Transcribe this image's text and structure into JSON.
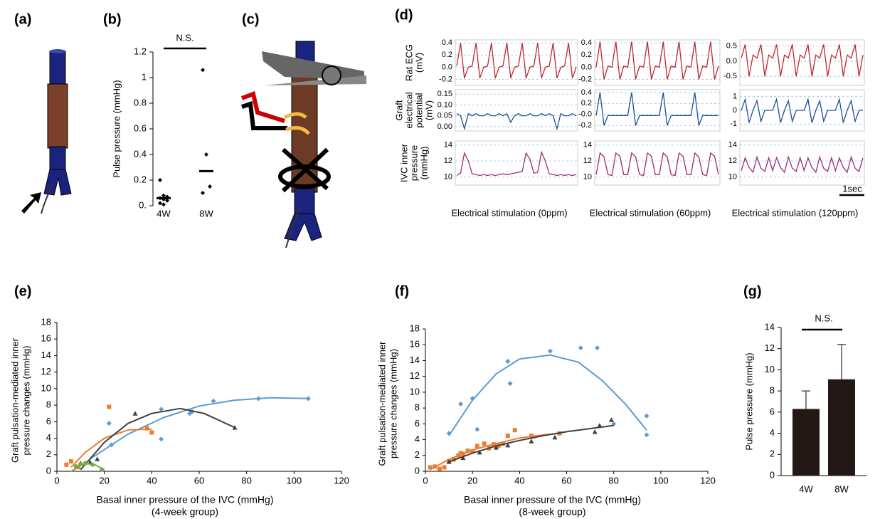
{
  "panel_labels": [
    "(a)",
    "(b)",
    "(c)",
    "(d)",
    "(e)",
    "(f)",
    "(g)"
  ],
  "chart_data": [
    {
      "type": "strip",
      "ylabel": "Pulse pressure (mmHg)",
      "categories": [
        "4W",
        "8W"
      ],
      "points": [
        [
          0.2,
          0.08,
          0.07,
          0.06,
          0.05,
          0.04,
          0.02,
          0.01
        ],
        [
          1.06,
          0.4,
          0.15,
          0.1
        ]
      ],
      "means": [
        0.06,
        0.27
      ],
      "annotation": "N.S.",
      "color": "#000000",
      "ylim": [
        0,
        1.2
      ],
      "yticks": [
        {
          "value": 0,
          "label": "0."
        },
        0.2,
        0.4,
        0.6,
        0.8,
        1,
        1.2
      ]
    },
    {
      "type": "traces",
      "row_labels": [
        [
          "Rat ECG",
          "(mV)"
        ],
        [
          "Graft",
          "electrical",
          "potential",
          "(mV)"
        ],
        [
          "IVC inner",
          "pressure",
          "(mmHg)"
        ]
      ],
      "row_colors": [
        "#c0272d",
        "#1f4e96",
        "#a0287a"
      ],
      "scale_bar_label": "1sec",
      "columns": [
        {
          "caption": "Electrical stimulation (0ppm)",
          "rows": [
            {
              "ylim": [
                -0.3,
                0.45
              ],
              "yticks": [
                0.4,
                0.2,
                {
                  "value": 0,
                  "label": "0.0"
                },
                -0.2
              ],
              "values": [
                0.02,
                0.4,
                -0.18,
                0.0,
                0.02,
                0.4,
                -0.18,
                0.0,
                0.02,
                0.4,
                -0.18,
                0.0,
                0.02,
                0.4,
                -0.18,
                0.0,
                0.02,
                0.4,
                -0.18,
                0.0,
                0.02,
                0.4,
                -0.18,
                0.0,
                0.02,
                0.4,
                -0.18,
                0.0,
                0.02,
                0.4,
                -0.18,
                0.0
              ]
            },
            {
              "ylim": [
                -0.02,
                0.17
              ],
              "yticks": [
                0.15,
                {
                  "value": 0.1,
                  "label": "0.10"
                },
                0.05,
                {
                  "value": 0,
                  "label": "0.00"
                }
              ],
              "values": [
                0.06,
                0.05,
                -0.01,
                0.06,
                0.05,
                0.06,
                0.05,
                0.05,
                0.06,
                0.05,
                0.05,
                0.06,
                0.05,
                0.06,
                0.02,
                0.05,
                0.06,
                0.05,
                0.05,
                0.06,
                0.05,
                0.05,
                0.06,
                0.05,
                0.06,
                0.05,
                -0.01,
                0.06,
                0.05,
                0.05,
                0.06,
                0.05
              ]
            },
            {
              "ylim": [
                9,
                14.5
              ],
              "yticks": [
                14,
                12,
                10
              ],
              "values": [
                10.2,
                10.5,
                13,
                12,
                10.4,
                10.3,
                10.2,
                10.3,
                10.2,
                10.3,
                10.2,
                10.3,
                10.4,
                10.3,
                10.4,
                10.5,
                10.6,
                10.7,
                13,
                12.2,
                10.5,
                10.6,
                13.1,
                12,
                10.4,
                10.3,
                10.2,
                10.3,
                10.2,
                10.3,
                10.2,
                10.3
              ]
            }
          ]
        },
        {
          "caption": "Electrical stimulation (60ppm)",
          "rows": [
            {
              "ylim": [
                -0.3,
                0.45
              ],
              "yticks": [
                0.4,
                0.2,
                {
                  "value": 0,
                  "label": "0.0"
                },
                -0.2
              ],
              "values": [
                0.0,
                0.42,
                -0.2,
                0.02,
                0.0,
                0.42,
                -0.2,
                0.02,
                0.0,
                0.42,
                -0.2,
                0.02,
                0.0,
                0.42,
                -0.2,
                0.02,
                0.0,
                0.42,
                -0.2,
                0.02,
                0.0,
                0.42,
                -0.2,
                0.02,
                0.0,
                0.42,
                -0.2,
                0.02,
                0.0,
                0.42,
                -0.2,
                0.02
              ]
            },
            {
              "ylim": [
                -0.3,
                0.45
              ],
              "yticks": [
                0.4,
                0.2,
                {
                  "value": 0,
                  "label": "-0.0"
                },
                -0.2
              ],
              "values": [
                -0.02,
                0.4,
                -0.2,
                -0.02,
                -0.02,
                -0.02,
                -0.02,
                -0.02,
                -0.02,
                0.4,
                -0.2,
                -0.02,
                -0.02,
                -0.02,
                -0.02,
                -0.02,
                -0.02,
                0.4,
                -0.2,
                -0.02,
                -0.02,
                -0.02,
                -0.02,
                -0.02,
                -0.02,
                0.4,
                -0.2,
                -0.02,
                -0.02,
                -0.02,
                -0.02,
                -0.02
              ]
            },
            {
              "ylim": [
                9,
                14.5
              ],
              "yticks": [
                14,
                12,
                10
              ],
              "values": [
                10.3,
                13,
                12.5,
                10.3,
                10.2,
                13,
                12.6,
                10.3,
                10.3,
                13,
                12.5,
                10.3,
                10.2,
                13,
                12.6,
                10.3,
                10.3,
                13,
                12.5,
                10.3,
                10.2,
                13,
                12.6,
                10.3,
                10.3,
                13,
                12.5,
                10.3,
                10.2,
                13,
                12.6,
                10.3
              ]
            }
          ]
        },
        {
          "caption": "Electrical stimulation (120ppm)",
          "rows": [
            {
              "ylim": [
                -0.8,
                0.7
              ],
              "yticks": [
                0.5,
                {
                  "value": 0,
                  "label": "0.0"
                },
                -0.5
              ],
              "values": [
                0.1,
                0.55,
                -0.5,
                0.2,
                0.1,
                0.55,
                -0.5,
                0.2,
                0.1,
                0.55,
                -0.5,
                0.2,
                0.1,
                0.55,
                -0.5,
                0.2,
                0.1,
                0.55,
                -0.5,
                0.2,
                0.1,
                0.55,
                -0.5,
                0.2,
                0.1,
                0.55,
                -0.5,
                0.2,
                0.1,
                0.55,
                -0.5,
                0.2
              ]
            },
            {
              "ylim": [
                -1.5,
                1.5
              ],
              "yticks": [
                1,
                0,
                -1
              ],
              "values": [
                0,
                0.8,
                -0.9,
                0,
                0.7,
                -0.8,
                0,
                0,
                0,
                0.8,
                -0.9,
                0,
                0.7,
                -0.8,
                0,
                0,
                0,
                0.8,
                -0.9,
                0,
                0.7,
                -0.8,
                0,
                0,
                0,
                0.8,
                -0.9,
                0,
                0.7,
                -0.8,
                0,
                0
              ]
            },
            {
              "ylim": [
                9,
                14.5
              ],
              "yticks": [
                14,
                12,
                10
              ],
              "values": [
                10.8,
                12.4,
                11.2,
                10.6,
                12.5,
                11.1,
                10.7,
                12.4,
                10.8,
                12.4,
                11.2,
                10.6,
                12.5,
                11.1,
                10.7,
                12.4,
                10.8,
                12.4,
                11.2,
                10.6,
                12.5,
                11.1,
                10.7,
                12.4,
                10.8,
                12.4,
                11.2,
                10.6,
                12.5,
                11.1,
                10.7,
                12.4
              ]
            }
          ]
        }
      ]
    },
    {
      "type": "scatter",
      "xlabel": "Basal inner pressure of the IVC (mmHg)",
      "subtitle": "(4-week group)",
      "ylabel": [
        "Graft pulsation-mediated inner",
        "pressure changes (mmHg)"
      ],
      "xlim": [
        0,
        120
      ],
      "xticks": [
        0,
        20,
        40,
        60,
        80,
        100,
        120
      ],
      "ylim": [
        0,
        18
      ],
      "yticks": [
        0,
        2,
        4,
        6,
        8,
        10,
        12,
        14,
        16,
        18
      ],
      "series": [
        {
          "color": "#5b9bd5",
          "marker": "diamond",
          "x": [
            22,
            23,
            44,
            44,
            56,
            57,
            66,
            85,
            106
          ],
          "values": [
            5.8,
            3.2,
            3.9,
            7.5,
            7,
            7.2,
            8.5,
            8.8,
            8.8
          ],
          "fit_x": [
            14,
            30,
            45,
            60,
            75,
            90,
            106
          ],
          "fit_values": [
            1.5,
            4.5,
            6.5,
            7.9,
            8.6,
            8.9,
            8.8
          ]
        },
        {
          "color": "#ed7d31",
          "marker": "square",
          "x": [
            4,
            6,
            9,
            22,
            38,
            40
          ],
          "values": [
            0.8,
            1.2,
            0.5,
            7.8,
            5.2,
            4.7
          ],
          "fit_x": [
            6,
            12,
            20,
            30,
            40
          ],
          "fit_values": [
            0.5,
            2.3,
            4,
            5,
            5.1
          ]
        },
        {
          "color": "#404040",
          "marker": "triangle",
          "x": [
            10,
            14,
            17,
            33,
            75
          ],
          "values": [
            1,
            1.1,
            1.5,
            7,
            5.3
          ],
          "fit_x": [
            10,
            20,
            30,
            40,
            52,
            62,
            75
          ],
          "fit_values": [
            0.2,
            3.5,
            5.8,
            7,
            7.6,
            7,
            5.3
          ]
        },
        {
          "color": "#70ad47",
          "marker": "circle",
          "x": [
            8,
            10,
            12,
            15,
            19
          ],
          "values": [
            0.6,
            0.9,
            1,
            0.8,
            0.2
          ],
          "fit_x": [
            6,
            10,
            13,
            16,
            20
          ],
          "fit_values": [
            0,
            0.7,
            0.9,
            0.8,
            0.2
          ]
        }
      ]
    },
    {
      "type": "scatter",
      "xlabel": "Basal inner pressure of the IVC (mmHg)",
      "subtitle": "(8-week group)",
      "ylabel": [
        "Graft pulsation-mediated inner",
        "pressure changes (mmHg)"
      ],
      "xlim": [
        0,
        120
      ],
      "xticks": [
        0,
        20,
        40,
        60,
        80,
        100,
        120
      ],
      "ylim": [
        0,
        18
      ],
      "yticks": [
        0,
        2,
        4,
        6,
        8,
        10,
        12,
        14,
        16,
        18
      ],
      "series": [
        {
          "color": "#5b9bd5",
          "marker": "diamond",
          "x": [
            10,
            15,
            20,
            22,
            35,
            36,
            53,
            66,
            73,
            80,
            94,
            94
          ],
          "values": [
            4.8,
            8.5,
            9.2,
            5.3,
            13.9,
            11.1,
            15.2,
            15.6,
            15.6,
            6,
            7,
            4.6
          ],
          "fit_x": [
            10,
            20,
            30,
            40,
            53,
            65,
            75,
            85,
            94
          ],
          "fit_values": [
            4.5,
            9,
            12.3,
            14.2,
            14.7,
            13.8,
            11.5,
            8.5,
            5.2
          ]
        },
        {
          "color": "#ed7d31",
          "marker": "square",
          "x": [
            2,
            4,
            6,
            8,
            10,
            12,
            14,
            15,
            16,
            18,
            20,
            22,
            25,
            27,
            29,
            31,
            33,
            35,
            38,
            45,
            57
          ],
          "values": [
            0.5,
            0.6,
            0.3,
            0.5,
            1.3,
            1.5,
            2,
            2.3,
            2.2,
            2.6,
            2.5,
            3.2,
            3.5,
            2.9,
            3.4,
            3.2,
            3.5,
            4.5,
            5.2,
            4.5,
            4.8
          ],
          "fit_x": [
            2,
            10,
            20,
            30,
            40,
            50,
            57
          ],
          "fit_values": [
            0.2,
            1.5,
            2.7,
            3.5,
            4.2,
            4.6,
            4.8
          ]
        },
        {
          "color": "#404040",
          "marker": "triangle",
          "x": [
            10,
            16,
            23,
            30,
            35,
            45,
            55,
            72,
            74,
            79
          ],
          "values": [
            1.2,
            1.7,
            2.4,
            3,
            3.3,
            3.8,
            4.3,
            5,
            5.8,
            6.5
          ],
          "fit_x": [
            10,
            20,
            30,
            40,
            50,
            60,
            70,
            80
          ],
          "fit_values": [
            1.2,
            2.3,
            3.2,
            3.9,
            4.5,
            5,
            5.4,
            5.8
          ]
        }
      ]
    },
    {
      "type": "bar",
      "ylabel": "Pulse pressure (mmHg)",
      "categories": [
        "4W",
        "8W"
      ],
      "values": [
        6.3,
        9.1
      ],
      "errors": [
        1.7,
        3.3
      ],
      "color": "#231815",
      "annotation": "N.S.",
      "ylim": [
        0,
        14
      ],
      "yticks": [
        0,
        2,
        4,
        6,
        8,
        10,
        12,
        14
      ]
    }
  ]
}
